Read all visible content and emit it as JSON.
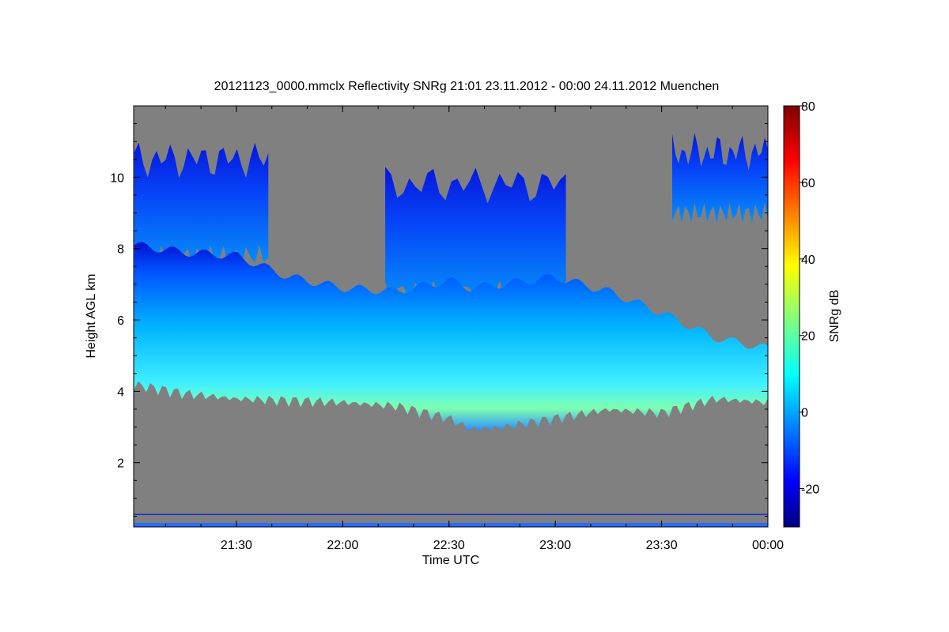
{
  "chart_data": {
    "type": "heatmap",
    "title": "20121123_0000.mmclx Reflectivity SNRg   21:01 23.11.2012 - 00:00 24.11.2012 Muenchen",
    "xlabel": "Time UTC",
    "ylabel": "Height AGL km",
    "x_ticks": [
      "21:30",
      "22:00",
      "22:30",
      "23:00",
      "23:30",
      "00:00"
    ],
    "y_ticks": [
      "2",
      "4",
      "6",
      "8",
      "10"
    ],
    "x_range": [
      "21:01",
      "00:00"
    ],
    "y_range": [
      0.2,
      12
    ],
    "colorbar": {
      "label": "SNRg dB",
      "range": [
        -30,
        80
      ],
      "ticks": [
        "-20",
        "0",
        "20",
        "40",
        "60",
        "80"
      ],
      "colormap": "jet"
    },
    "background_color": "#808080",
    "cloud_layer": {
      "description_hidden": true,
      "base_km": [
        [
          21.02,
          4.25
        ],
        [
          21.25,
          4.0
        ],
        [
          21.5,
          3.85
        ],
        [
          21.75,
          3.8
        ],
        [
          22.0,
          3.75
        ],
        [
          22.25,
          3.65
        ],
        [
          22.5,
          3.3
        ],
        [
          22.6,
          3.0
        ],
        [
          22.75,
          3.05
        ],
        [
          23.0,
          3.3
        ],
        [
          23.25,
          3.55
        ],
        [
          23.5,
          3.45
        ],
        [
          23.75,
          3.85
        ],
        [
          24.0,
          3.75
        ]
      ],
      "top_km": [
        [
          21.02,
          8.1
        ],
        [
          21.25,
          7.9
        ],
        [
          21.5,
          7.8
        ],
        [
          21.75,
          7.2
        ],
        [
          22.0,
          6.9
        ],
        [
          22.25,
          6.8
        ],
        [
          22.5,
          7.1
        ],
        [
          22.6,
          6.9
        ],
        [
          22.75,
          7.0
        ],
        [
          23.0,
          7.2
        ],
        [
          23.25,
          6.8
        ],
        [
          23.5,
          6.2
        ],
        [
          23.75,
          5.5
        ],
        [
          24.0,
          5.2
        ]
      ]
    },
    "cirrus_patches": [
      {
        "start": 21.02,
        "end": 21.65,
        "bottom_km": 7.8,
        "top_km": 10.5
      },
      {
        "start": 22.2,
        "end": 23.05,
        "bottom_km": 6.8,
        "top_km": 9.8
      },
      {
        "start": 23.55,
        "end": 24.0,
        "bottom_km": 9.0,
        "top_km": 10.7
      }
    ]
  }
}
